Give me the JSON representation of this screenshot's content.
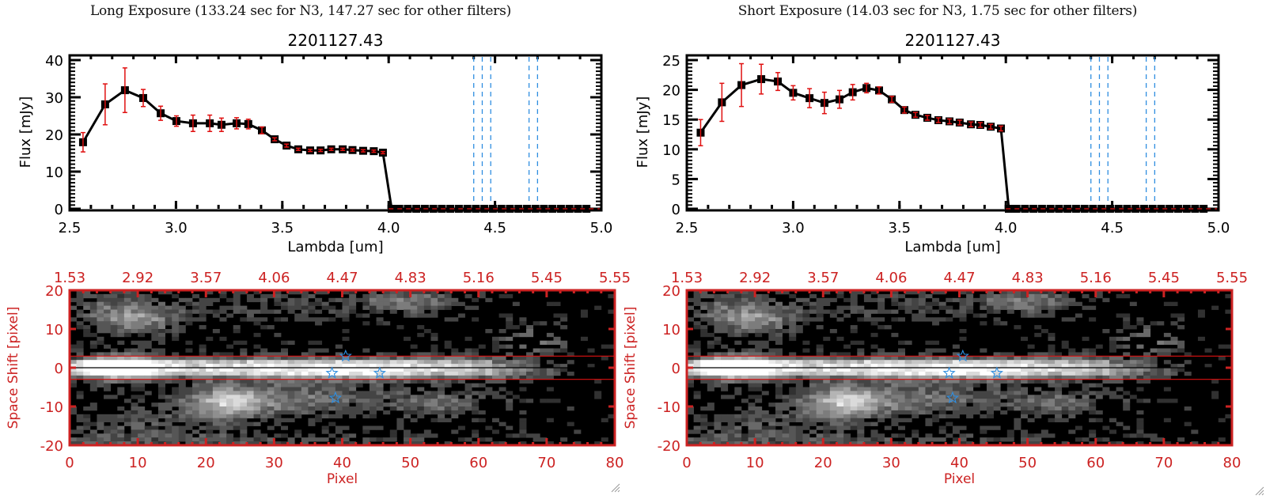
{
  "panels": [
    {
      "id": "long",
      "exposure_title": "Long Exposure (133.24 sec for N3, 147.27 sec for other filters)"
    },
    {
      "id": "short",
      "exposure_title": "Short Exposure (14.03 sec for N3, 1.75 sec for other filters)"
    }
  ],
  "colors": {
    "axis_black": "#000000",
    "error_bar": "#e01010",
    "zero_line": "#e01010",
    "line_marker_blue": "#2f8ee0",
    "image_axis_red": "#cc2222",
    "aperture_line": "#dd1111",
    "star_marker": "#2f8ee0"
  },
  "chart_data": [
    {
      "type": "line",
      "panel": "long",
      "title": "2201127.43",
      "xlabel": "Lambda [um]",
      "ylabel": "Flux [mJy]",
      "xlim": [
        2.5,
        5.0
      ],
      "ylim": [
        0,
        40
      ],
      "xticks": [
        2.5,
        3.0,
        3.5,
        4.0,
        4.5,
        5.0
      ],
      "xtick_labels": [
        "2.5",
        "3.0",
        "3.5",
        "4.0",
        "4.5",
        "5.0"
      ],
      "yticks": [
        0,
        10,
        20,
        30,
        40
      ],
      "ytick_labels": [
        "0",
        "10",
        "20",
        "30",
        "40"
      ],
      "grid": false,
      "series": [
        {
          "name": "flux",
          "x": [
            2.563,
            2.667,
            2.76,
            2.846,
            2.928,
            3.002,
            3.08,
            3.159,
            3.214,
            3.285,
            3.34,
            3.404,
            3.464,
            3.52,
            3.575,
            3.631,
            3.68,
            3.73,
            3.784,
            3.83,
            3.88,
            3.93,
            3.973,
            4.014,
            4.05,
            4.09,
            4.13,
            4.17,
            4.21,
            4.25,
            4.29,
            4.33,
            4.37,
            4.41,
            4.45,
            4.49,
            4.53,
            4.57,
            4.61,
            4.65,
            4.69,
            4.73,
            4.77,
            4.81,
            4.85,
            4.89,
            4.93
          ],
          "y": [
            17.9,
            28.1,
            31.9,
            29.8,
            25.7,
            23.6,
            23.0,
            23.0,
            22.6,
            23.0,
            22.8,
            21.1,
            18.7,
            17.0,
            16.0,
            15.7,
            15.7,
            16.0,
            16.0,
            15.8,
            15.6,
            15.5,
            15.1,
            0,
            0,
            0,
            0,
            0,
            0,
            0,
            0,
            0,
            0,
            0,
            0,
            0,
            0,
            0,
            0,
            0,
            0,
            0,
            0,
            0,
            0,
            0,
            0
          ],
          "yerr": [
            2.6,
            5.5,
            6.0,
            2.3,
            1.9,
            1.4,
            2.2,
            2.2,
            1.8,
            1.5,
            1.3,
            0.9,
            0.4,
            0.4,
            0.3,
            0.3,
            0.3,
            0.3,
            0.3,
            0.3,
            0.3,
            0.3,
            0.3,
            0.2,
            0.2,
            0.2,
            0.2,
            0.2,
            0.2,
            0.2,
            0.2,
            0.2,
            0.2,
            0.2,
            0.2,
            0.2,
            0.2,
            0.2,
            0.2,
            0.2,
            0.2,
            0.2,
            0.2,
            0.2,
            0.2,
            0.2,
            0.2
          ]
        }
      ],
      "reference_lines": {
        "zero_dashed_y": 0,
        "vertical_dashed_x": [
          4.4,
          4.44,
          4.48,
          4.66,
          4.7
        ]
      }
    },
    {
      "type": "line",
      "panel": "short",
      "title": "2201127.43",
      "xlabel": "Lambda [um]",
      "ylabel": "Flux [mJy]",
      "xlim": [
        2.5,
        5.0
      ],
      "ylim": [
        0,
        25
      ],
      "xticks": [
        2.5,
        3.0,
        3.5,
        4.0,
        4.5,
        5.0
      ],
      "xtick_labels": [
        "2.5",
        "3.0",
        "3.5",
        "4.0",
        "4.5",
        "5.0"
      ],
      "yticks": [
        0,
        5,
        10,
        15,
        20,
        25
      ],
      "ytick_labels": [
        "0",
        "5",
        "10",
        "15",
        "20",
        "25"
      ],
      "grid": false,
      "series": [
        {
          "name": "flux",
          "x": [
            2.565,
            2.665,
            2.757,
            2.85,
            2.928,
            3.0,
            3.077,
            3.147,
            3.218,
            3.28,
            3.345,
            3.404,
            3.464,
            3.523,
            3.575,
            3.631,
            3.683,
            3.735,
            3.783,
            3.836,
            3.88,
            3.929,
            3.977,
            4.014,
            4.05,
            4.09,
            4.13,
            4.17,
            4.21,
            4.25,
            4.29,
            4.33,
            4.37,
            4.41,
            4.45,
            4.49,
            4.53,
            4.57,
            4.61,
            4.65,
            4.69,
            4.73,
            4.77,
            4.81,
            4.85,
            4.89,
            4.93
          ],
          "y": [
            12.8,
            17.9,
            20.8,
            21.8,
            21.4,
            19.5,
            18.6,
            17.8,
            18.4,
            19.6,
            20.3,
            19.9,
            18.4,
            16.6,
            15.8,
            15.3,
            14.9,
            14.7,
            14.5,
            14.2,
            14.1,
            13.8,
            13.5,
            0,
            0,
            0,
            0,
            0,
            0,
            0,
            0,
            0,
            0,
            0,
            0,
            0,
            0,
            0,
            0,
            0,
            0,
            0,
            0,
            0,
            0,
            0,
            0
          ],
          "yerr": [
            2.2,
            3.2,
            3.6,
            2.5,
            1.5,
            1.2,
            1.6,
            1.8,
            1.5,
            1.3,
            0.8,
            0.6,
            0.5,
            0.5,
            0.4,
            0.4,
            0.4,
            0.4,
            0.4,
            0.4,
            0.4,
            0.4,
            0.4,
            0.2,
            0.2,
            0.2,
            0.2,
            0.2,
            0.2,
            0.2,
            0.2,
            0.2,
            0.2,
            0.2,
            0.2,
            0.2,
            0.2,
            0.2,
            0.2,
            0.2,
            0.2,
            0.2,
            0.2,
            0.2,
            0.2,
            0.2,
            0.2
          ]
        }
      ],
      "reference_lines": {
        "zero_dashed_y": 0,
        "vertical_dashed_x": [
          4.4,
          4.44,
          4.48,
          4.66,
          4.7
        ]
      }
    },
    {
      "type": "heatmap",
      "panel": "long",
      "title": "",
      "xlabel": "Pixel",
      "ylabel": "Space Shift [pixel]",
      "xlim": [
        0,
        80
      ],
      "ylim": [
        -20,
        20
      ],
      "xticks": [
        0,
        10,
        20,
        30,
        40,
        50,
        60,
        70,
        80
      ],
      "xtick_labels": [
        "0",
        "10",
        "20",
        "30",
        "40",
        "50",
        "60",
        "70",
        "80"
      ],
      "top_xtick_labels": [
        "1.53",
        "2.92",
        "3.57",
        "4.06",
        "4.47",
        "4.83",
        "5.16",
        "5.45",
        "5.55"
      ],
      "yticks": [
        -20,
        -10,
        0,
        10,
        20
      ],
      "ytick_labels": [
        "-20",
        "-10",
        "0",
        "10",
        "20"
      ],
      "grid": false,
      "aperture_lines_y": [
        3,
        -3
      ],
      "center_line_y": 0,
      "stars": [
        [
          40.5,
          3.0
        ],
        [
          38.5,
          -1.4
        ],
        [
          45.5,
          -1.4
        ],
        [
          39.0,
          -7.8
        ]
      ],
      "blobs": [
        [
          7,
          0,
          4,
          2.2,
          1.0
        ],
        [
          25,
          0,
          16,
          2.0,
          0.62
        ],
        [
          45,
          -0.5,
          10,
          2.0,
          0.55
        ],
        [
          58,
          0.5,
          6,
          2.0,
          0.35
        ],
        [
          66,
          -1,
          5,
          1.5,
          0.25
        ],
        [
          10,
          12,
          4,
          2.5,
          0.45
        ],
        [
          6,
          16,
          5,
          3,
          0.25
        ],
        [
          23,
          -9,
          4,
          3,
          0.6
        ],
        [
          33,
          -8,
          9,
          3,
          0.38
        ],
        [
          55,
          -9,
          6,
          2.5,
          0.3
        ],
        [
          50,
          17,
          5,
          2,
          0.4
        ],
        [
          68,
          7,
          3,
          2.5,
          0.35
        ],
        [
          30,
          16,
          12,
          3,
          0.16
        ],
        [
          20,
          -19,
          30,
          2,
          0.18
        ],
        [
          10,
          -14,
          8,
          4,
          0.18
        ]
      ],
      "noise_level": 0.14
    },
    {
      "type": "heatmap",
      "panel": "short",
      "title": "",
      "xlabel": "Pixel",
      "ylabel": "Space Shift [pixel]",
      "xlim": [
        0,
        80
      ],
      "ylim": [
        -20,
        20
      ],
      "xticks": [
        0,
        10,
        20,
        30,
        40,
        50,
        60,
        70,
        80
      ],
      "xtick_labels": [
        "0",
        "10",
        "20",
        "30",
        "40",
        "50",
        "60",
        "70",
        "80"
      ],
      "top_xtick_labels": [
        "1.53",
        "2.92",
        "3.57",
        "4.06",
        "4.47",
        "4.83",
        "5.16",
        "5.45",
        "5.55"
      ],
      "yticks": [
        -20,
        -10,
        0,
        10,
        20
      ],
      "ytick_labels": [
        "-20",
        "-10",
        "0",
        "10",
        "20"
      ],
      "grid": false,
      "aperture_lines_y": [
        3,
        -3
      ],
      "center_line_y": 0,
      "stars": [
        [
          40.5,
          3.0
        ],
        [
          38.5,
          -1.4
        ],
        [
          45.5,
          -1.4
        ],
        [
          39.0,
          -7.8
        ]
      ],
      "blobs": [
        [
          7,
          0,
          4,
          2.2,
          1.0
        ],
        [
          25,
          0,
          16,
          2.0,
          0.62
        ],
        [
          45,
          -0.5,
          10,
          2.0,
          0.55
        ],
        [
          58,
          0.5,
          6,
          2.0,
          0.35
        ],
        [
          66,
          -1,
          5,
          1.5,
          0.25
        ],
        [
          10,
          12,
          4,
          2.5,
          0.45
        ],
        [
          6,
          16,
          5,
          3,
          0.25
        ],
        [
          23,
          -9,
          4,
          3,
          0.6
        ],
        [
          33,
          -8,
          9,
          3,
          0.38
        ],
        [
          55,
          -9,
          6,
          2.5,
          0.3
        ],
        [
          50,
          17,
          5,
          2,
          0.4
        ],
        [
          68,
          7,
          3,
          2.5,
          0.35
        ],
        [
          30,
          16,
          12,
          3,
          0.16
        ],
        [
          20,
          -19,
          30,
          2,
          0.18
        ],
        [
          10,
          -14,
          8,
          4,
          0.18
        ]
      ],
      "noise_level": 0.14
    }
  ]
}
